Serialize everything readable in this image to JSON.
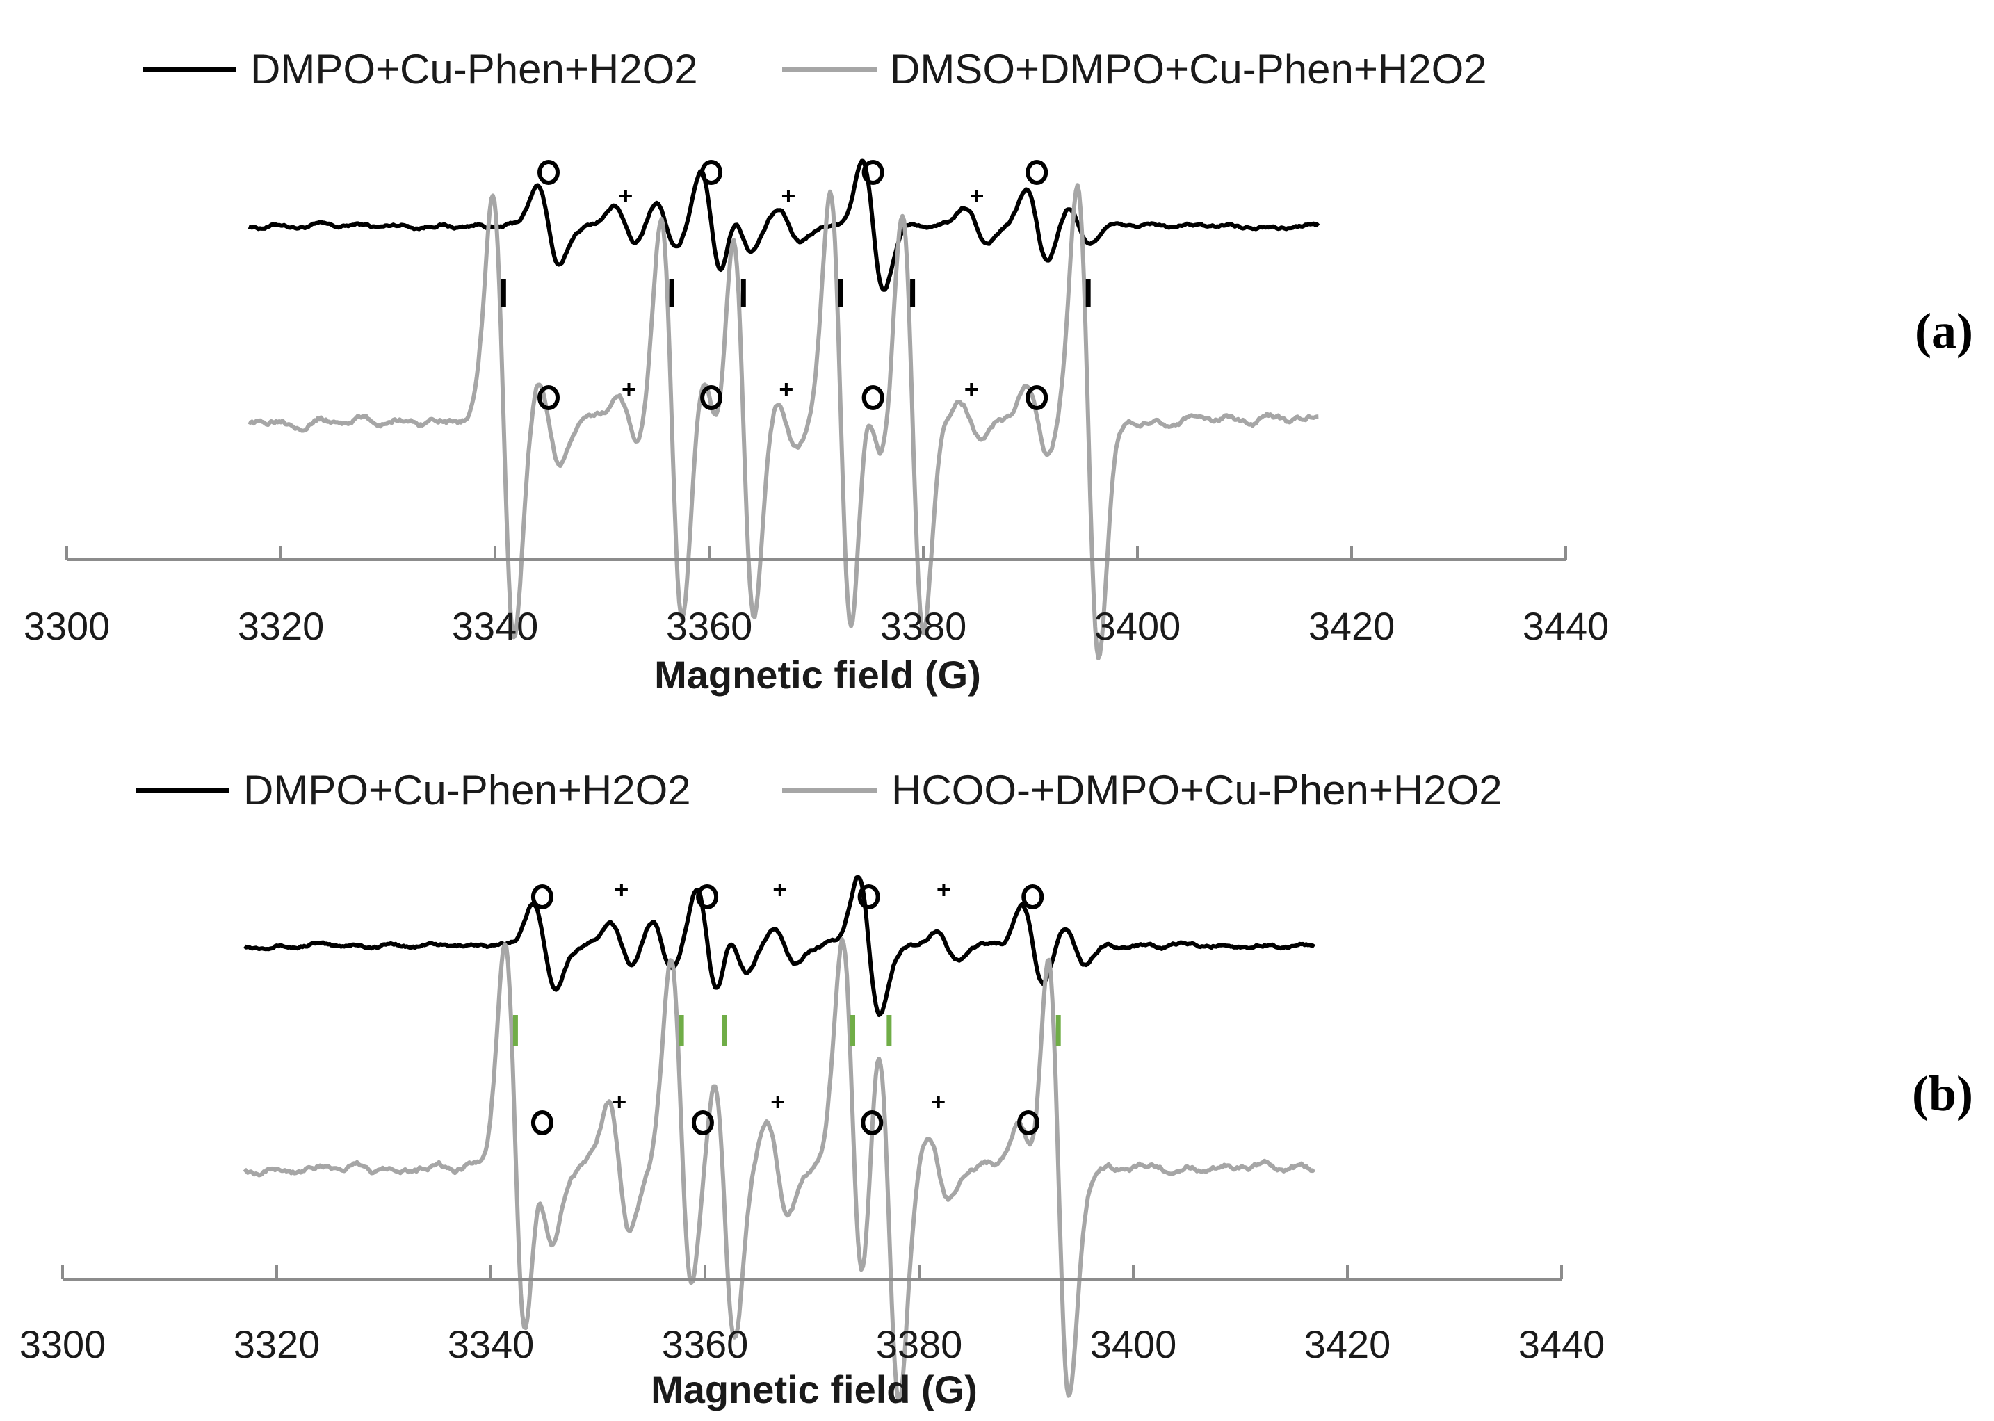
{
  "chart_data": [
    {
      "panel": "(a)",
      "type": "line",
      "xlabel": "Magnetic field (G)",
      "xlim": [
        3300,
        3440
      ],
      "xticks": [
        3300,
        3320,
        3340,
        3360,
        3380,
        3400,
        3420,
        3440
      ],
      "grid": false,
      "legend": "top",
      "series": [
        {
          "name": "DMPO+Cu-Phen+H2O2",
          "color": "#000000",
          "x_range": [
            3317,
            3417
          ],
          "peaks": [
            {
              "x": 3345.0,
              "amp": 0.35
            },
            {
              "x": 3352.2,
              "amp": 0.18
            },
            {
              "x": 3356.0,
              "amp": 0.22
            },
            {
              "x": 3360.2,
              "amp": 0.48
            },
            {
              "x": 3363.0,
              "amp": 0.22
            },
            {
              "x": 3367.4,
              "amp": 0.14
            },
            {
              "x": 3375.3,
              "amp": 0.55
            },
            {
              "x": 3385.0,
              "amp": 0.15
            },
            {
              "x": 3390.6,
              "amp": 0.3
            },
            {
              "x": 3394.5,
              "amp": 0.15
            }
          ]
        },
        {
          "name": "DMSO+DMPO+Cu-Phen+H2O2",
          "color": "#a6a6a6",
          "x_range": [
            3317,
            3417
          ],
          "peaks": [
            {
              "x": 3340.8,
              "amp": 1.0
            },
            {
              "x": 3345.0,
              "amp": 0.2
            },
            {
              "x": 3352.5,
              "amp": 0.12
            },
            {
              "x": 3356.5,
              "amp": 0.92
            },
            {
              "x": 3360.2,
              "amp": 0.22
            },
            {
              "x": 3363.2,
              "amp": 0.9
            },
            {
              "x": 3367.2,
              "amp": 0.12
            },
            {
              "x": 3372.3,
              "amp": 1.0
            },
            {
              "x": 3375.3,
              "amp": 0.2
            },
            {
              "x": 3379.0,
              "amp": 0.95
            },
            {
              "x": 3384.5,
              "amp": 0.08
            },
            {
              "x": 3390.6,
              "amp": 0.15
            },
            {
              "x": 3395.4,
              "amp": 1.05
            }
          ]
        }
      ],
      "annotations": {
        "circle_markers": {
          "top": [
            3345.0,
            3360.2,
            3375.3,
            3390.6
          ],
          "bottom": [
            3345.0,
            3360.2,
            3375.3,
            3390.6
          ]
        },
        "plus_markers": {
          "top": [
            3352.2,
            3367.4,
            3385.0
          ],
          "bottom": [
            3352.5,
            3367.2,
            3384.5
          ]
        },
        "bar_markers": {
          "x": [
            3340.8,
            3356.5,
            3363.2,
            3372.3,
            3379.0,
            3395.4
          ],
          "color": "#000000"
        }
      }
    },
    {
      "panel": "(b)",
      "type": "line",
      "xlabel": "Magnetic field (G)",
      "xlim": [
        3300,
        3440
      ],
      "xticks": [
        3300,
        3320,
        3340,
        3360,
        3380,
        3400,
        3420,
        3440
      ],
      "grid": false,
      "legend": "top",
      "series": [
        {
          "name": "DMPO+Cu-Phen+H2O2",
          "color": "#000000",
          "x_range": [
            3317,
            3417
          ],
          "peaks": [
            {
              "x": 3345.0,
              "amp": 0.35
            },
            {
              "x": 3352.2,
              "amp": 0.18
            },
            {
              "x": 3356.0,
              "amp": 0.22
            },
            {
              "x": 3360.2,
              "amp": 0.48
            },
            {
              "x": 3363.0,
              "amp": 0.22
            },
            {
              "x": 3367.4,
              "amp": 0.14
            },
            {
              "x": 3375.3,
              "amp": 0.55
            },
            {
              "x": 3382.5,
              "amp": 0.12
            },
            {
              "x": 3390.6,
              "amp": 0.3
            },
            {
              "x": 3394.5,
              "amp": 0.15
            }
          ]
        },
        {
          "name": "HCOO-+DMPO+Cu-Phen+H2O2",
          "color": "#a6a6a6",
          "x_range": [
            3317,
            3417
          ],
          "peaks": [
            {
              "x": 3342.3,
              "amp": 1.0
            },
            {
              "x": 3344.8,
              "amp": 0.35
            },
            {
              "x": 3352.0,
              "amp": 0.3
            },
            {
              "x": 3357.8,
              "amp": 0.9
            },
            {
              "x": 3359.8,
              "amp": 0.35
            },
            {
              "x": 3361.8,
              "amp": 0.75
            },
            {
              "x": 3366.8,
              "amp": 0.22
            },
            {
              "x": 3373.8,
              "amp": 1.0
            },
            {
              "x": 3375.6,
              "amp": 0.35
            },
            {
              "x": 3377.2,
              "amp": 1.0
            },
            {
              "x": 3381.8,
              "amp": 0.15
            },
            {
              "x": 3390.2,
              "amp": 0.2
            },
            {
              "x": 3393.0,
              "amp": 1.05
            }
          ]
        }
      ],
      "annotations": {
        "circle_markers": {
          "top": [
            3344.8,
            3360.2,
            3375.3,
            3390.6
          ],
          "bottom": [
            3344.8,
            3359.8,
            3375.6,
            3390.2
          ]
        },
        "plus_markers": {
          "top": [
            3352.2,
            3367.0,
            3382.3
          ],
          "bottom": [
            3352.0,
            3366.8,
            3381.8
          ]
        },
        "bar_markers": {
          "x": [
            3342.3,
            3357.8,
            3361.8,
            3373.8,
            3377.2,
            3393.0
          ],
          "color": "#70ad47"
        }
      }
    }
  ]
}
